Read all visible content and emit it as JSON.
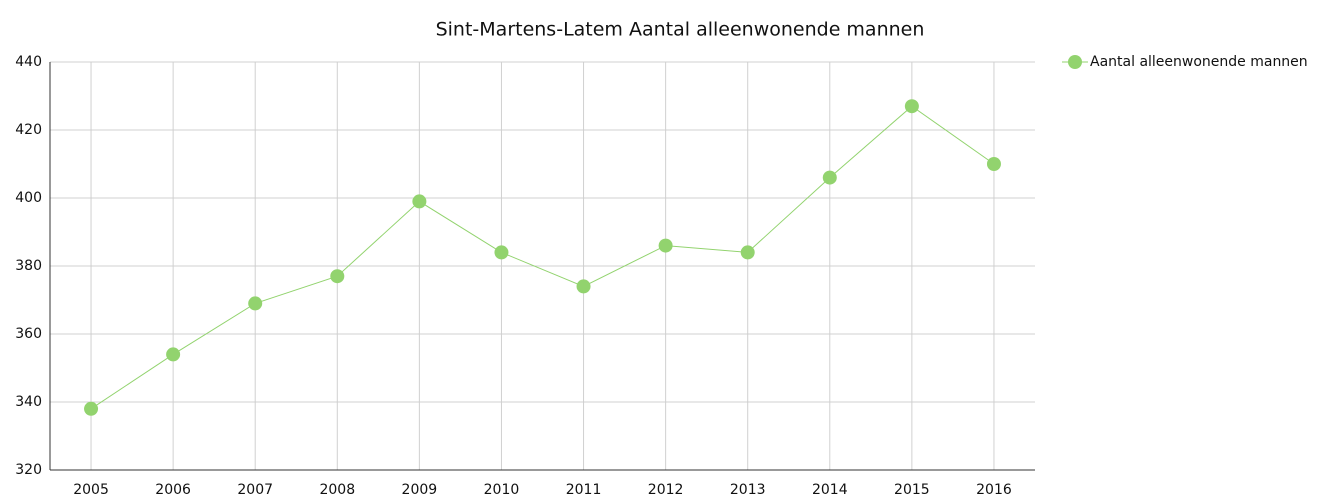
{
  "chart_data": {
    "type": "line",
    "title": "Sint-Martens-Latem  Aantal alleenwonende mannen",
    "categories": [
      "2005",
      "2006",
      "2007",
      "2008",
      "2009",
      "2010",
      "2011",
      "2012",
      "2013",
      "2014",
      "2015",
      "2016"
    ],
    "series": [
      {
        "name": "Aantal alleenwonende mannen",
        "color": "#92d36e",
        "values": [
          338,
          354,
          369,
          377,
          399,
          384,
          374,
          386,
          384,
          406,
          427,
          410
        ]
      }
    ],
    "ylim": [
      320,
      440
    ],
    "yticks": [
      320,
      340,
      360,
      380,
      400,
      420,
      440
    ],
    "grid": true,
    "legend": "right"
  }
}
